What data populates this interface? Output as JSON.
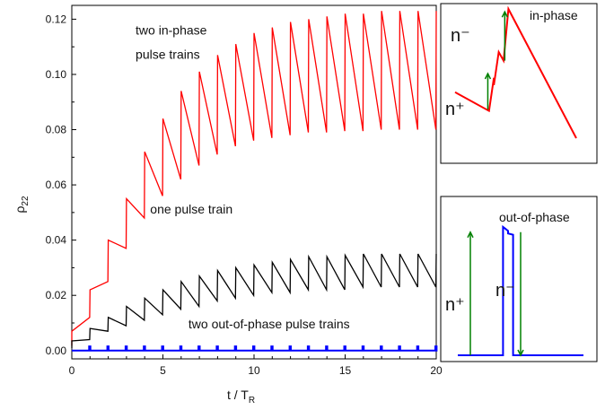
{
  "chart_data": [
    {
      "type": "line",
      "xlabel": "t / T",
      "xlabel_sub": "R",
      "ylabel": "ρ",
      "ylabel_sub": "22",
      "xlim": [
        0,
        20
      ],
      "ylim": [
        -0.003,
        0.125
      ],
      "xticks": [
        0,
        5,
        10,
        15,
        20
      ],
      "xtick_labels": [
        "0",
        "5",
        "10",
        "15",
        "20"
      ],
      "yticks": [
        0.0,
        0.02,
        0.04,
        0.06,
        0.08,
        0.1,
        0.12
      ],
      "ytick_labels": [
        "0.00",
        "0.02",
        "0.04",
        "0.06",
        "0.08",
        "0.10",
        "0.12"
      ],
      "grid": false,
      "annotations": [
        {
          "text": "two in-phase",
          "x": 3.5,
          "y": 0.1145
        },
        {
          "text": "pulse trains",
          "x": 3.5,
          "y": 0.1057
        },
        {
          "text": "one pulse train",
          "x": 4.3,
          "y": 0.0496
        },
        {
          "text": "two out-of-phase pulse trains",
          "x": 6.4,
          "y": 0.0081
        }
      ],
      "series": [
        {
          "color": "#ff0000",
          "peak_x": [
            0,
            1,
            2,
            3,
            4,
            5,
            6,
            7,
            8,
            9,
            10,
            11,
            12,
            13,
            14,
            15,
            16,
            17,
            18,
            19,
            20
          ],
          "peak_y": [
            0.007,
            0.022,
            0.04,
            0.055,
            0.072,
            0.084,
            0.094,
            0.101,
            0.107,
            0.111,
            0.115,
            0.117,
            0.119,
            0.12,
            0.121,
            0.122,
            0.122,
            0.123,
            0.123,
            0.123,
            0.123
          ],
          "trough_y": [
            0.0035,
            0.012,
            0.025,
            0.037,
            0.048,
            0.056,
            0.062,
            0.067,
            0.071,
            0.074,
            0.076,
            0.077,
            0.078,
            0.079,
            0.079,
            0.0795,
            0.0795,
            0.08,
            0.08,
            0.08,
            0.08
          ]
        },
        {
          "color": "#000000",
          "peak_x": [
            0,
            1,
            2,
            3,
            4,
            5,
            6,
            7,
            8,
            9,
            10,
            11,
            12,
            13,
            14,
            15,
            16,
            17,
            18,
            19,
            20
          ],
          "peak_y": [
            0.0035,
            0.008,
            0.012,
            0.016,
            0.019,
            0.022,
            0.025,
            0.027,
            0.029,
            0.03,
            0.031,
            0.032,
            0.033,
            0.034,
            0.034,
            0.0345,
            0.035,
            0.035,
            0.035,
            0.035,
            0.035
          ],
          "trough_y": [
            0.0018,
            0.004,
            0.007,
            0.009,
            0.011,
            0.013,
            0.015,
            0.016,
            0.018,
            0.019,
            0.02,
            0.021,
            0.021,
            0.022,
            0.022,
            0.022,
            0.023,
            0.023,
            0.023,
            0.023,
            0.023
          ]
        },
        {
          "color": "#0000ff",
          "pulse_x": [
            0,
            1,
            2,
            3,
            4,
            5,
            6,
            7,
            8,
            9,
            10,
            11,
            12,
            13,
            14,
            15,
            16,
            17,
            18,
            19
          ],
          "baseline": 0.0,
          "pulse_height": 0.0015
        }
      ]
    },
    {
      "type": "line",
      "title": "in-phase",
      "labels": [
        "n⁻",
        "n⁺"
      ],
      "line_color": "#ff0000",
      "arrow_color": "#008000",
      "points_x": [
        0.0,
        0.28,
        0.32,
        0.32,
        0.36,
        0.4,
        0.44,
        1.0
      ],
      "points_y": [
        0.42,
        0.29,
        0.52,
        0.47,
        0.7,
        0.64,
        1.0,
        0.1
      ]
    },
    {
      "type": "line",
      "title": "out-of-phase",
      "labels": [
        "n⁺",
        "n⁻"
      ],
      "line_color": "#0000ff",
      "arrow_color": "#008000",
      "points_x": [
        0.0,
        0.36,
        0.36,
        0.4,
        0.4,
        0.44,
        0.44,
        1.0
      ],
      "points_y": [
        0.0,
        0.0,
        0.98,
        0.95,
        0.93,
        0.92,
        0.0,
        0.0
      ]
    }
  ]
}
